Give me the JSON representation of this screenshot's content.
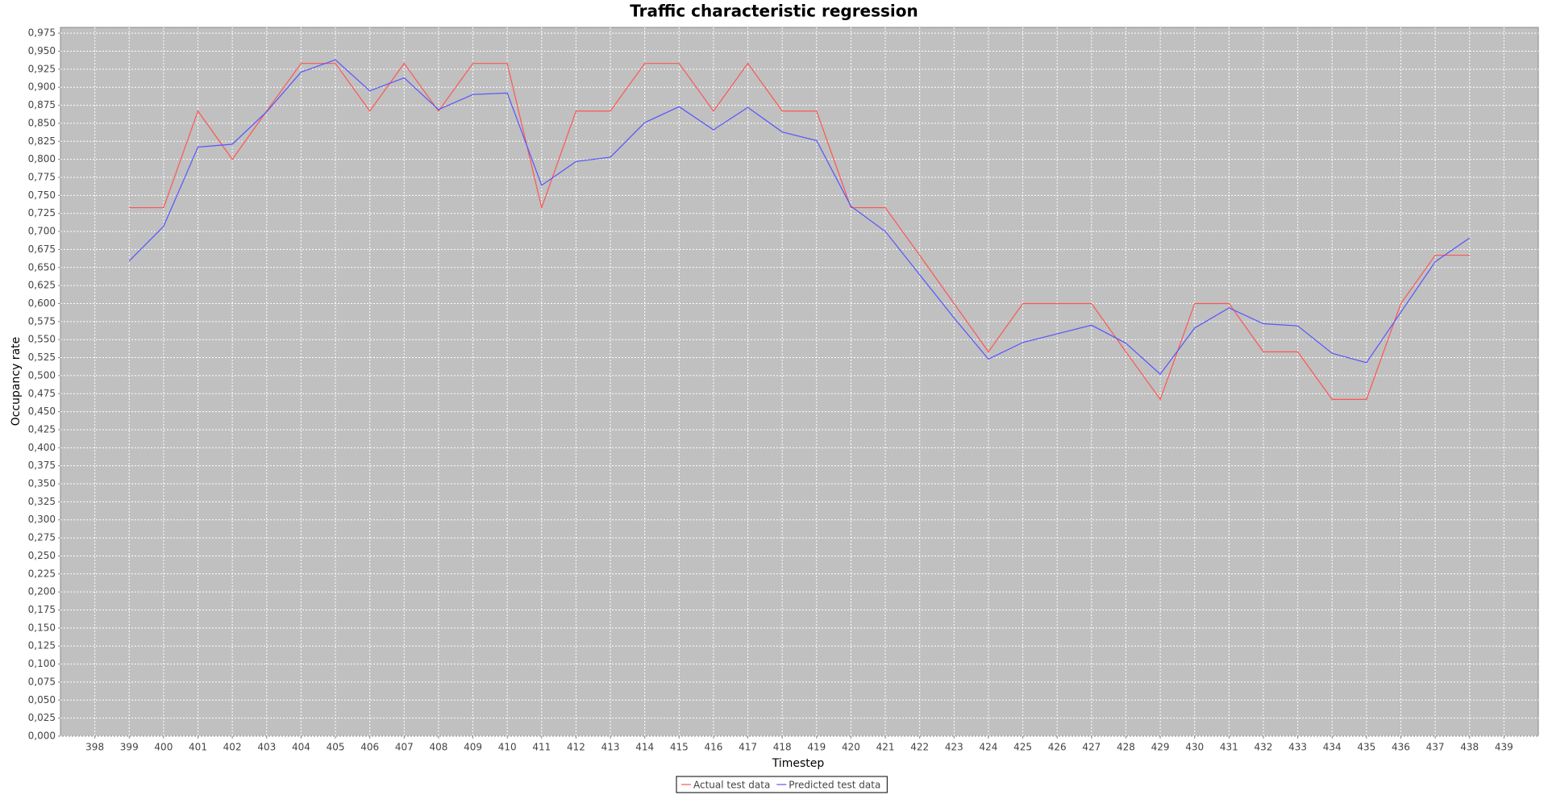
{
  "chart_data": {
    "type": "line",
    "title": "Traffic characteristic regression",
    "x_label": "Timestep",
    "y_label": "Occupancy rate",
    "x": [
      399,
      400,
      401,
      402,
      403,
      404,
      405,
      406,
      407,
      408,
      409,
      410,
      411,
      412,
      413,
      414,
      415,
      416,
      417,
      418,
      419,
      420,
      421,
      422,
      423,
      424,
      425,
      426,
      427,
      428,
      429,
      430,
      431,
      432,
      433,
      434,
      435,
      436,
      437,
      438
    ],
    "series": [
      {
        "name": "Actual test data",
        "color": "#ff5555",
        "values": [
          0.733,
          0.733,
          0.867,
          0.8,
          0.867,
          0.933,
          0.933,
          0.867,
          0.933,
          0.867,
          0.933,
          0.933,
          0.733,
          0.867,
          0.867,
          0.933,
          0.933,
          0.867,
          0.933,
          0.867,
          0.867,
          0.733,
          0.733,
          0.667,
          0.6,
          0.533,
          0.6,
          0.6,
          0.6,
          0.533,
          0.467,
          0.6,
          0.6,
          0.533,
          0.533,
          0.467,
          0.467,
          0.6,
          0.667,
          0.667
        ]
      },
      {
        "name": "Predicted test data",
        "color": "#5555ff",
        "values": [
          0.659,
          0.707,
          0.817,
          0.821,
          0.866,
          0.921,
          0.938,
          0.895,
          0.913,
          0.869,
          0.89,
          0.892,
          0.764,
          0.797,
          0.803,
          0.851,
          0.873,
          0.841,
          0.872,
          0.838,
          0.826,
          0.735,
          0.7,
          0.64,
          0.58,
          0.523,
          0.546,
          0.558,
          0.57,
          0.545,
          0.502,
          0.566,
          0.594,
          0.572,
          0.569,
          0.531,
          0.518,
          0.588,
          0.658,
          0.691
        ]
      }
    ],
    "xlim": [
      397,
      440
    ],
    "xticks": [
      398,
      399,
      400,
      401,
      402,
      403,
      404,
      405,
      406,
      407,
      408,
      409,
      410,
      411,
      412,
      413,
      414,
      415,
      416,
      417,
      418,
      419,
      420,
      421,
      422,
      423,
      424,
      425,
      426,
      427,
      428,
      429,
      430,
      431,
      432,
      433,
      434,
      435,
      436,
      437,
      438,
      439
    ],
    "ylim": [
      0,
      0.983
    ],
    "yticks": [
      {
        "value": 0,
        "label": "0,000"
      },
      {
        "value": 0.025,
        "label": "0,025"
      },
      {
        "value": 0.05,
        "label": "0,050"
      },
      {
        "value": 0.075,
        "label": "0,075"
      },
      {
        "value": 0.1,
        "label": "0,100"
      },
      {
        "value": 0.125,
        "label": "0,125"
      },
      {
        "value": 0.15,
        "label": "0,150"
      },
      {
        "value": 0.175,
        "label": "0,175"
      },
      {
        "value": 0.2,
        "label": "0,200"
      },
      {
        "value": 0.225,
        "label": "0,225"
      },
      {
        "value": 0.25,
        "label": "0,250"
      },
      {
        "value": 0.275,
        "label": "0,275"
      },
      {
        "value": 0.3,
        "label": "0,300"
      },
      {
        "value": 0.325,
        "label": "0,325"
      },
      {
        "value": 0.35,
        "label": "0,350"
      },
      {
        "value": 0.375,
        "label": "0,375"
      },
      {
        "value": 0.4,
        "label": "0,400"
      },
      {
        "value": 0.425,
        "label": "0,425"
      },
      {
        "value": 0.45,
        "label": "0,450"
      },
      {
        "value": 0.475,
        "label": "0,475"
      },
      {
        "value": 0.5,
        "label": "0,500"
      },
      {
        "value": 0.525,
        "label": "0,525"
      },
      {
        "value": 0.55,
        "label": "0,550"
      },
      {
        "value": 0.575,
        "label": "0,575"
      },
      {
        "value": 0.6,
        "label": "0,600"
      },
      {
        "value": 0.625,
        "label": "0,625"
      },
      {
        "value": 0.65,
        "label": "0,650"
      },
      {
        "value": 0.675,
        "label": "0,675"
      },
      {
        "value": 0.7,
        "label": "0,700"
      },
      {
        "value": 0.725,
        "label": "0,725"
      },
      {
        "value": 0.75,
        "label": "0,750"
      },
      {
        "value": 0.775,
        "label": "0,775"
      },
      {
        "value": 0.8,
        "label": "0,800"
      },
      {
        "value": 0.825,
        "label": "0,825"
      },
      {
        "value": 0.85,
        "label": "0,850"
      },
      {
        "value": 0.875,
        "label": "0,875"
      },
      {
        "value": 0.9,
        "label": "0,900"
      },
      {
        "value": 0.925,
        "label": "0,925"
      },
      {
        "value": 0.95,
        "label": "0,950"
      },
      {
        "value": 0.975,
        "label": "0,975"
      }
    ],
    "grid": true,
    "background": "#c0c0c0",
    "legend": "bottom"
  }
}
